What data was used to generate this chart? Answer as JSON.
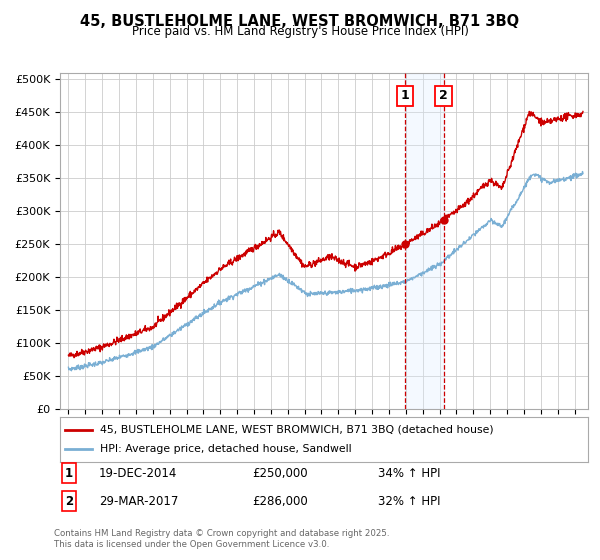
{
  "title": "45, BUSTLEHOLME LANE, WEST BROMWICH, B71 3BQ",
  "subtitle": "Price paid vs. HM Land Registry's House Price Index (HPI)",
  "ylabel_ticks": [
    "£0",
    "£50K",
    "£100K",
    "£150K",
    "£200K",
    "£250K",
    "£300K",
    "£350K",
    "£400K",
    "£450K",
    "£500K"
  ],
  "ytick_values": [
    0,
    50000,
    100000,
    150000,
    200000,
    250000,
    300000,
    350000,
    400000,
    450000,
    500000
  ],
  "ylim": [
    0,
    510000
  ],
  "xlim_start": 1994.5,
  "xlim_end": 2025.8,
  "red_line_color": "#cc0000",
  "blue_line_color": "#7aafd4",
  "marker1_x": 2014.97,
  "marker1_y": 250000,
  "marker2_x": 2017.24,
  "marker2_y": 286000,
  "shade_color": "#ddeeff",
  "legend_label_red": "45, BUSTLEHOLME LANE, WEST BROMWICH, B71 3BQ (detached house)",
  "legend_label_blue": "HPI: Average price, detached house, Sandwell",
  "annotation1_label": "1",
  "annotation1_date": "19-DEC-2014",
  "annotation1_price": "£250,000",
  "annotation1_hpi": "34% ↑ HPI",
  "annotation2_label": "2",
  "annotation2_date": "29-MAR-2017",
  "annotation2_price": "£286,000",
  "annotation2_hpi": "32% ↑ HPI",
  "footer": "Contains HM Land Registry data © Crown copyright and database right 2025.\nThis data is licensed under the Open Government Licence v3.0.",
  "background_color": "#ffffff",
  "grid_color": "#cccccc"
}
